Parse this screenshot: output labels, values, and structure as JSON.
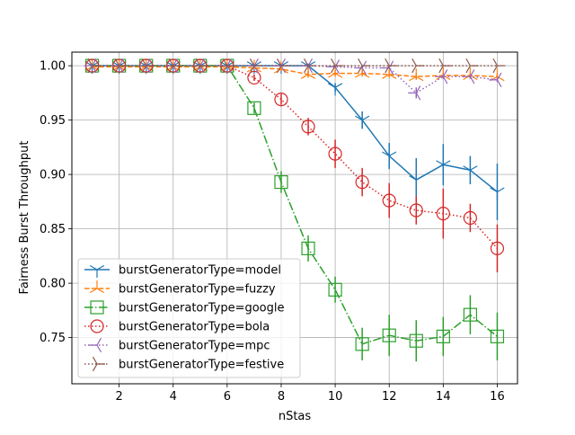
{
  "chart_data": {
    "type": "line",
    "title": "",
    "xlabel": "nStas",
    "ylabel": "Fairness Burst Throughput",
    "xlim": [
      0.25,
      16.75
    ],
    "ylim": [
      0.7075,
      1.0125
    ],
    "xticks": [
      2,
      4,
      6,
      8,
      10,
      12,
      14,
      16
    ],
    "yticks": [
      0.75,
      0.8,
      0.85,
      0.9,
      0.95,
      1.0
    ],
    "ytick_labels": [
      "0.75",
      "0.80",
      "0.85",
      "0.90",
      "0.95",
      "1.00"
    ],
    "grid": true,
    "legend_position": "lower-left",
    "x": [
      1,
      2,
      3,
      4,
      5,
      6,
      7,
      8,
      9,
      10,
      11,
      12,
      13,
      14,
      15,
      16
    ],
    "series": [
      {
        "name": "burstGeneratorType=model",
        "color": "#1f77b4",
        "linestyle": "solid",
        "marker": "tri_down",
        "values": [
          1.0,
          1.0,
          1.0,
          1.0,
          1.0,
          1.0,
          1.0,
          1.0,
          1.0,
          0.98,
          0.95,
          0.917,
          0.895,
          0.909,
          0.904,
          0.884
        ],
        "errors": [
          0,
          0,
          0,
          0,
          0,
          0,
          0,
          0,
          0.002,
          0.004,
          0.008,
          0.012,
          0.02,
          0.019,
          0.013,
          0.026
        ]
      },
      {
        "name": "burstGeneratorType=fuzzy",
        "color": "#ff7f0e",
        "linestyle": "dashed",
        "marker": "tri_up",
        "values": [
          0.999,
          0.999,
          0.999,
          0.999,
          0.999,
          0.999,
          0.998,
          0.997,
          0.992,
          0.993,
          0.993,
          0.992,
          0.99,
          0.991,
          0.991,
          0.99
        ],
        "errors": [
          0,
          0,
          0,
          0,
          0,
          0,
          0.001,
          0.002,
          0.003,
          0.003,
          0.003,
          0.003,
          0.003,
          0.003,
          0.003,
          0.003
        ]
      },
      {
        "name": "burstGeneratorType=google",
        "color": "#2ca02c",
        "linestyle": "dashdot",
        "marker": "square",
        "values": [
          1.0,
          1.0,
          1.0,
          1.0,
          1.0,
          1.0,
          0.961,
          0.893,
          0.832,
          0.794,
          0.744,
          0.752,
          0.747,
          0.751,
          0.771,
          0.751
        ],
        "errors": [
          0,
          0,
          0,
          0,
          0,
          0,
          0.005,
          0.01,
          0.012,
          0.012,
          0.015,
          0.019,
          0.019,
          0.018,
          0.018,
          0.022
        ]
      },
      {
        "name": "burstGeneratorType=bola",
        "color": "#d62728",
        "linestyle": "dotted",
        "marker": "circle",
        "values": [
          1.0,
          1.0,
          1.0,
          1.0,
          1.0,
          1.0,
          0.989,
          0.969,
          0.944,
          0.919,
          0.893,
          0.876,
          0.867,
          0.864,
          0.86,
          0.832
        ],
        "errors": [
          0,
          0,
          0,
          0,
          0,
          0,
          0.003,
          0.005,
          0.008,
          0.013,
          0.013,
          0.016,
          0.013,
          0.023,
          0.013,
          0.022
        ]
      },
      {
        "name": "burstGeneratorType=mpc",
        "color": "#9467bd",
        "linestyle": "dotted",
        "marker": "tri_left",
        "values": [
          1.0,
          1.0,
          1.0,
          1.0,
          1.0,
          1.0,
          1.0,
          1.0,
          1.0,
          0.999,
          0.998,
          0.998,
          0.975,
          0.99,
          0.99,
          0.987
        ],
        "errors": [
          0,
          0,
          0,
          0,
          0,
          0,
          0,
          0,
          0,
          0.001,
          0.001,
          0.001,
          0.005,
          0.002,
          0.002,
          0.002
        ]
      },
      {
        "name": "burstGeneratorType=festive",
        "color": "#8c564b",
        "linestyle": "dotted",
        "marker": "tri_right",
        "values": [
          1.0,
          1.0,
          1.0,
          1.0,
          1.0,
          1.0,
          1.0,
          1.0,
          1.0,
          1.0,
          1.0,
          1.0,
          1.0,
          1.0,
          1.0,
          1.0
        ],
        "errors": [
          0,
          0,
          0,
          0,
          0,
          0,
          0,
          0,
          0,
          0,
          0,
          0,
          0,
          0,
          0,
          0
        ]
      }
    ]
  }
}
